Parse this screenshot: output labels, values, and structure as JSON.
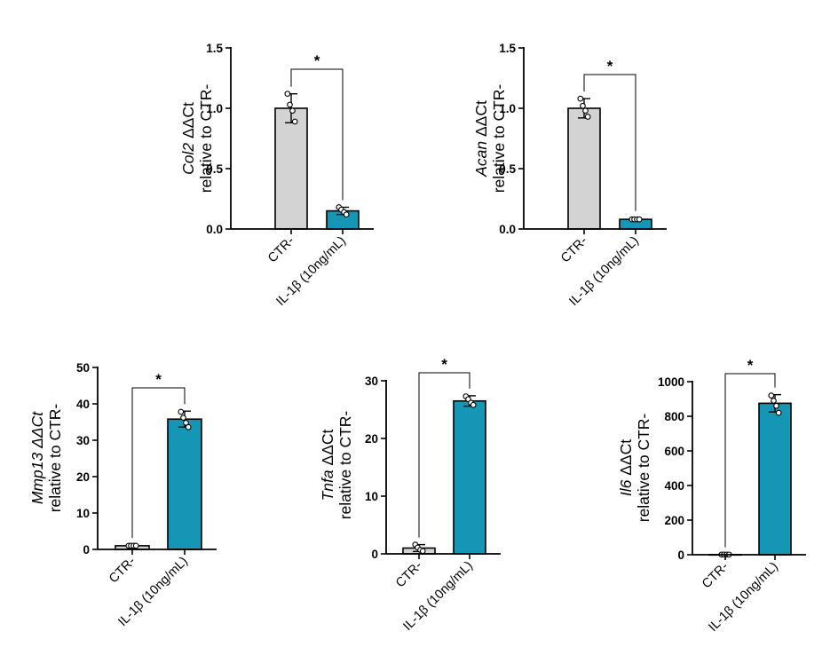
{
  "chart_data": [
    {
      "type": "bar",
      "ylabel_gene": "Col2",
      "ylabel_metric": " ΔΔCt",
      "ylabel_line2": "relative to CTR-",
      "categories": [
        "CTR-",
        "IL-1β (10ng/mL)"
      ],
      "values": [
        1.0,
        0.15
      ],
      "errors": [
        0.12,
        0.03
      ],
      "points": [
        [
          1.12,
          1.03,
          0.98,
          0.89
        ],
        [
          0.18,
          0.16,
          0.14,
          0.12
        ]
      ],
      "ylim": [
        0,
        1.5
      ],
      "yticks": [
        0.0,
        0.5,
        1.0,
        1.5
      ],
      "tick_labels": [
        "0.0",
        "0.5",
        "1.0",
        "1.5"
      ],
      "significance": "*",
      "colors": [
        "#d3d3d3",
        "#1596b5"
      ]
    },
    {
      "type": "bar",
      "ylabel_gene": "Acan",
      "ylabel_metric": " ΔΔCt",
      "ylabel_line2": "relative to CTR-",
      "categories": [
        "CTR-",
        "IL-1β (10ng/mL)"
      ],
      "values": [
        1.0,
        0.08
      ],
      "errors": [
        0.08,
        0.01
      ],
      "points": [
        [
          1.08,
          1.02,
          0.98,
          0.93
        ],
        [
          0.08,
          0.08,
          0.08,
          0.08
        ]
      ],
      "ylim": [
        0,
        1.5
      ],
      "yticks": [
        0.0,
        0.5,
        1.0,
        1.5
      ],
      "tick_labels": [
        "0.0",
        "0.5",
        "1.0",
        "1.5"
      ],
      "significance": "*",
      "colors": [
        "#d3d3d3",
        "#1596b5"
      ]
    },
    {
      "type": "bar",
      "ylabel_gene": "Mmp13 ΔΔCt",
      "ylabel_metric": "",
      "ylabel_line2": "relative to CTR-",
      "categories": [
        "CTR-",
        "IL-1β (10ng/mL)"
      ],
      "values": [
        1.0,
        35.8
      ],
      "errors": [
        0.2,
        2.2
      ],
      "points": [
        [
          1.0,
          1.0,
          1.0,
          1.0
        ],
        [
          37.8,
          36.2,
          34.8,
          33.6
        ]
      ],
      "ylim": [
        0,
        50
      ],
      "yticks": [
        0,
        10,
        20,
        30,
        40,
        50
      ],
      "tick_labels": [
        "0",
        "10",
        "20",
        "30",
        "40",
        "50"
      ],
      "significance": "*",
      "colors": [
        "#d3d3d3",
        "#1596b5"
      ]
    },
    {
      "type": "bar",
      "ylabel_gene": "Tnfa",
      "ylabel_metric": " ΔΔCt",
      "ylabel_line2": "relative to CTR-",
      "categories": [
        "CTR-",
        "IL-1β (10ng/mL)"
      ],
      "values": [
        1.0,
        26.5
      ],
      "errors": [
        0.6,
        0.9
      ],
      "points": [
        [
          1.6,
          1.1,
          0.7,
          0.5
        ],
        [
          27.3,
          26.8,
          26.2,
          25.8
        ]
      ],
      "ylim": [
        0,
        30
      ],
      "yticks": [
        0,
        10,
        20,
        30
      ],
      "tick_labels": [
        "0",
        "10",
        "20",
        "30"
      ],
      "significance": "*",
      "colors": [
        "#d3d3d3",
        "#1596b5"
      ]
    },
    {
      "type": "bar",
      "ylabel_gene": "Il6",
      "ylabel_metric": " ΔΔCt",
      "ylabel_line2": "relative to CTR-",
      "categories": [
        "CTR-",
        "IL-1β (10ng/mL)"
      ],
      "values": [
        1.0,
        875
      ],
      "errors": [
        1,
        50
      ],
      "points": [
        [
          1,
          1,
          1,
          1
        ],
        [
          920,
          890,
          860,
          820
        ]
      ],
      "ylim": [
        0,
        1000
      ],
      "yticks": [
        0,
        200,
        400,
        600,
        800,
        1000
      ],
      "tick_labels": [
        "0",
        "200",
        "400",
        "600",
        "800",
        "1000"
      ],
      "significance": "*",
      "colors": [
        "#d3d3d3",
        "#1596b5"
      ]
    }
  ]
}
